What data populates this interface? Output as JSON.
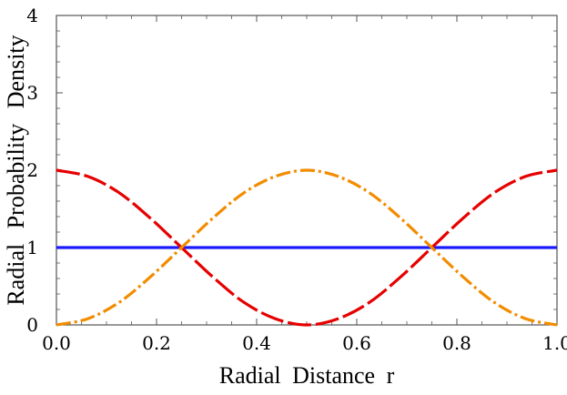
{
  "chart_data": {
    "type": "line",
    "title": "",
    "xlabel": "Radial Distance r",
    "ylabel": "Radial Probability Density",
    "xlim": [
      0.0,
      1.0
    ],
    "ylim": [
      0,
      4
    ],
    "x_ticks": [
      "0.0",
      "0.2",
      "0.4",
      "0.6",
      "0.8",
      "1.0"
    ],
    "y_ticks": [
      "0",
      "1",
      "2",
      "3",
      "4"
    ],
    "grid": false,
    "legend": "none",
    "series": [
      {
        "color": "#1a1aff",
        "style": "solid",
        "x": [
          0.0,
          0.125,
          0.25,
          0.375,
          0.5,
          0.625,
          0.75,
          0.875,
          1.0
        ],
        "y": [
          1,
          1,
          1,
          1,
          1,
          1,
          1,
          1,
          1
        ]
      },
      {
        "color": "#e60000",
        "style": "long-dash",
        "x": [
          0.0,
          0.0625,
          0.125,
          0.1875,
          0.25,
          0.3125,
          0.375,
          0.4375,
          0.5,
          0.5625,
          0.625,
          0.6875,
          0.75,
          0.8125,
          0.875,
          0.9375,
          1.0
        ],
        "y": [
          2.0,
          1.92,
          1.71,
          1.38,
          1.0,
          0.62,
          0.29,
          0.08,
          0.0,
          0.08,
          0.29,
          0.62,
          1.0,
          1.38,
          1.71,
          1.92,
          2.0
        ]
      },
      {
        "color": "#f28c00",
        "style": "dash-dot",
        "x": [
          0.0,
          0.0625,
          0.125,
          0.1875,
          0.25,
          0.3125,
          0.375,
          0.4375,
          0.5,
          0.5625,
          0.625,
          0.6875,
          0.75,
          0.8125,
          0.875,
          0.9375,
          1.0
        ],
        "y": [
          0.0,
          0.08,
          0.29,
          0.62,
          1.0,
          1.38,
          1.71,
          1.92,
          2.0,
          1.92,
          1.71,
          1.38,
          1.0,
          0.62,
          0.29,
          0.08,
          0.0
        ]
      }
    ]
  }
}
